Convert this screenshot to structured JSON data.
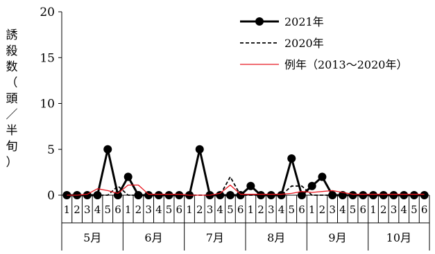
{
  "chart_data": {
    "type": "line",
    "ylabel": "誘殺数（頭／半旬）",
    "ylim": [
      0,
      20
    ],
    "yticks": [
      0,
      5,
      10,
      15,
      20
    ],
    "x": [
      "1",
      "2",
      "3",
      "4",
      "5",
      "6",
      "1",
      "2",
      "3",
      "4",
      "5",
      "6",
      "1",
      "2",
      "3",
      "4",
      "5",
      "6",
      "1",
      "2",
      "3",
      "4",
      "5",
      "6",
      "1",
      "2",
      "3",
      "4",
      "5",
      "6",
      "1",
      "2",
      "3",
      "4",
      "5",
      "6"
    ],
    "x_groups": [
      {
        "label": "5月",
        "count": 6
      },
      {
        "label": "6月",
        "count": 6
      },
      {
        "label": "7月",
        "count": 6
      },
      {
        "label": "8月",
        "count": 6
      },
      {
        "label": "9月",
        "count": 6
      },
      {
        "label": "10月",
        "count": 6
      }
    ],
    "series": [
      {
        "name": "2021年",
        "style": "solid-marker",
        "color": "#000000",
        "values": [
          0,
          0,
          0,
          0,
          5,
          0,
          2,
          0,
          0,
          0,
          0,
          0,
          0,
          5,
          0,
          0,
          0,
          0,
          1,
          0,
          0,
          0,
          4,
          0,
          1,
          2,
          0,
          0,
          0,
          0,
          0,
          0,
          0,
          0,
          0,
          0
        ]
      },
      {
        "name": "2020年",
        "style": "dashed",
        "color": "#000000",
        "values": [
          0,
          0,
          0,
          0,
          0,
          1,
          0,
          0,
          0,
          0,
          0,
          0,
          0,
          0,
          0,
          0,
          2,
          0,
          0,
          0,
          0,
          0,
          1,
          1,
          0,
          0,
          0,
          0,
          0,
          0,
          0,
          0,
          0,
          0,
          0,
          0
        ]
      },
      {
        "name": "例年（2013～2020年）",
        "style": "thin",
        "color": "#e8141d",
        "values": [
          0,
          0,
          0.1,
          0.7,
          0.5,
          0.2,
          1.1,
          1.1,
          0.1,
          0.1,
          0.1,
          0.1,
          0,
          0,
          0,
          0.2,
          1.1,
          0.1,
          0.1,
          0.1,
          0.1,
          0.1,
          0.2,
          0.4,
          0.3,
          0.4,
          0.5,
          0.3,
          0.1,
          0.1,
          0.1,
          0.1,
          0.1,
          0.1,
          0.1,
          0.1
        ]
      }
    ],
    "legend": "top-right",
    "grid": false
  }
}
